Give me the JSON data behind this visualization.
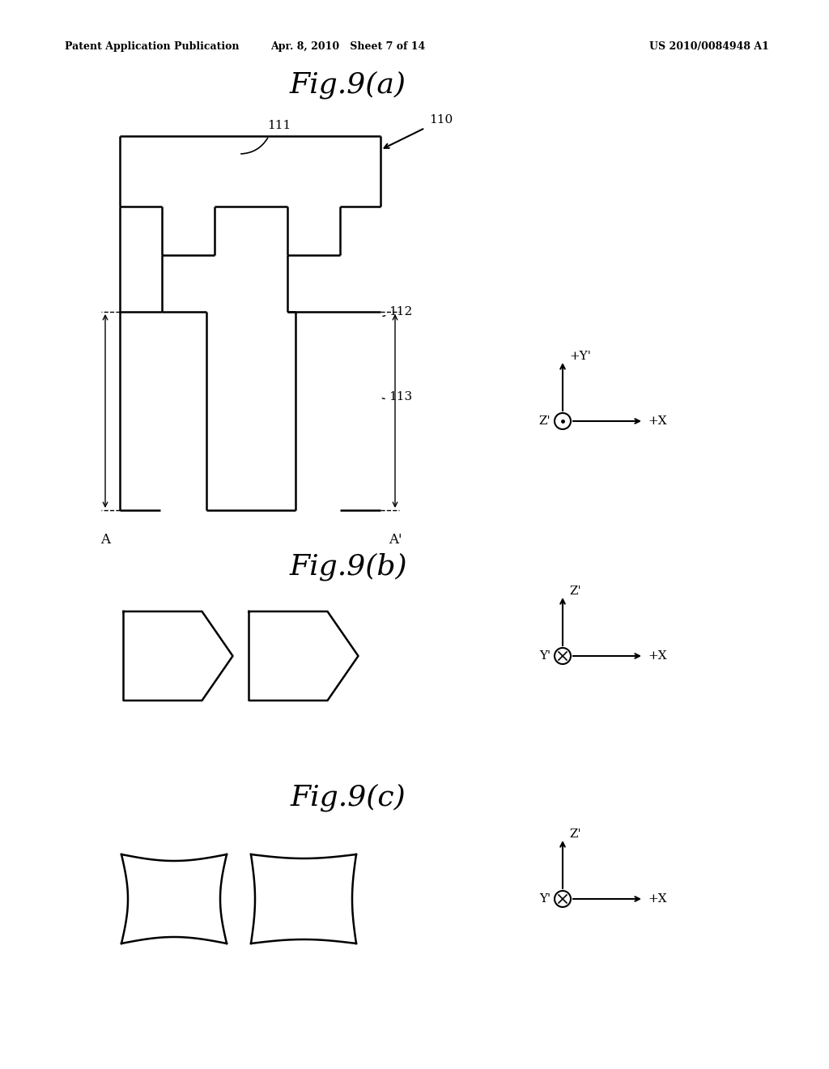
{
  "bg_color": "#ffffff",
  "line_color": "#000000",
  "header_left": "Patent Application Publication",
  "header_mid": "Apr. 8, 2010   Sheet 7 of 14",
  "header_right": "US 2010/0084948 A1",
  "fig_a_title": "Fig.9(a)",
  "fig_b_title": "Fig.9(b)",
  "fig_c_title": "Fig.9(c)",
  "label_110": "110",
  "label_111": "111",
  "label_112": "112",
  "label_113": "113",
  "label_A": "A",
  "label_Ap": "A'"
}
